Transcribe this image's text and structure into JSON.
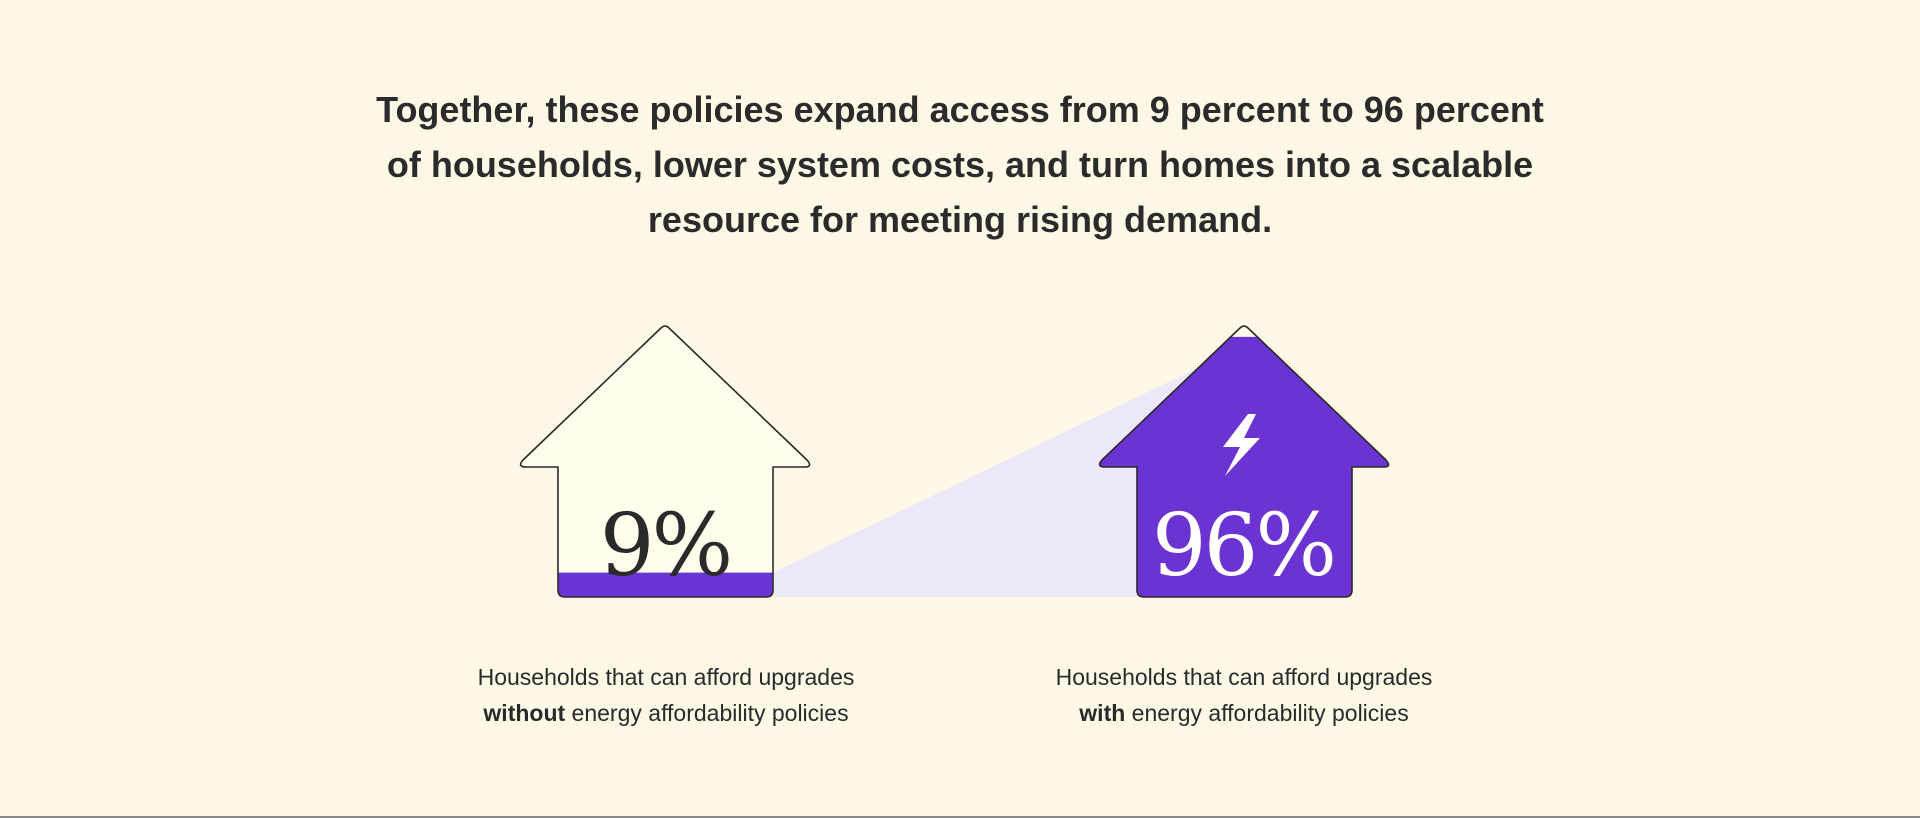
{
  "headline": {
    "line1": "Together, these policies expand access from 9 percent to 96 percent",
    "line2": "of households, lower system costs, and turn homes into a scalable",
    "line3": "resource for meeting rising demand."
  },
  "left_house": {
    "value_label": "9%",
    "fill_fraction": 0.09,
    "caption_line1": "Households that can afford upgrades",
    "caption_emphasis": "without",
    "caption_rest": " energy affordability policies"
  },
  "right_house": {
    "value_label": "96%",
    "fill_fraction": 0.96,
    "icon": "lightning-bolt-icon",
    "caption_line1": "Households that can afford upgrades",
    "caption_emphasis": "with",
    "caption_rest": " energy affordability policies"
  },
  "colors": {
    "background": "#fdf8e6",
    "accent_purple": "#6b33d1",
    "connector_lavender": "#ece8f8",
    "outline": "#2a2a2a",
    "house_empty": "#fffcec"
  }
}
